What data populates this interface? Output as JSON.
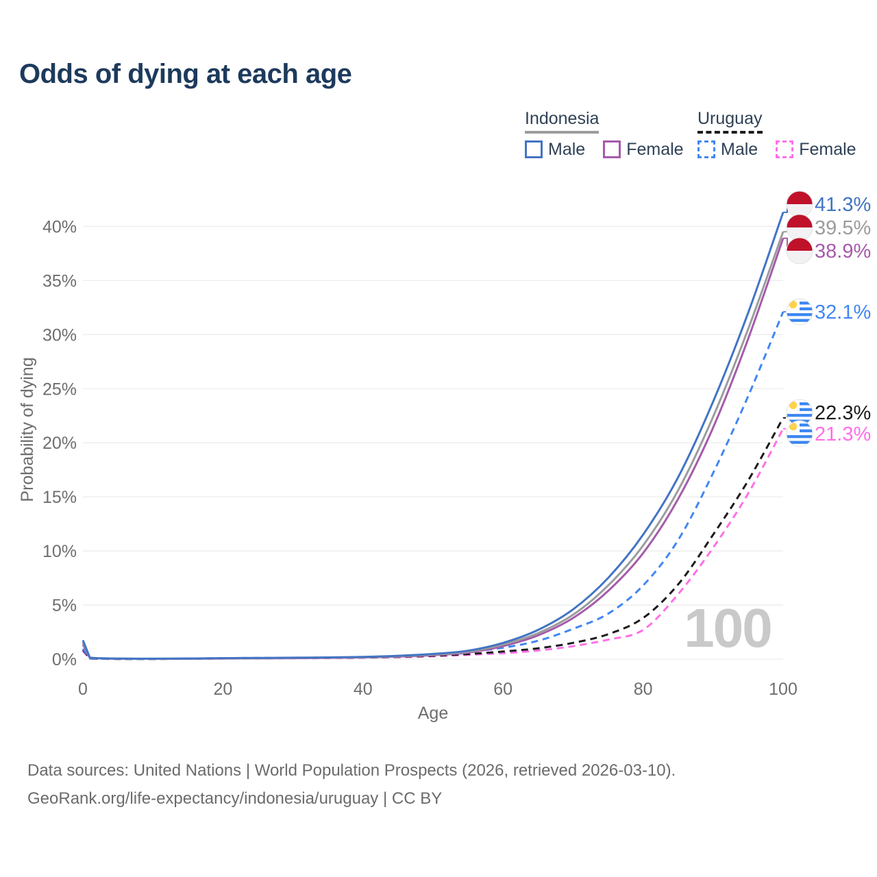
{
  "title": "Odds of dying at each age",
  "legend": {
    "groups": [
      {
        "label": "Indonesia",
        "line": {
          "color": "#9c9c9c",
          "style": "solid"
        },
        "items": [
          {
            "label": "Male",
            "color": "#4274c4",
            "style": "solid"
          },
          {
            "label": "Female",
            "color": "#a55bab",
            "style": "solid"
          }
        ]
      },
      {
        "label": "Uruguay",
        "line": {
          "color": "#1c1c1c",
          "style": "dashed"
        },
        "items": [
          {
            "label": "Male",
            "color": "#4187f2",
            "style": "dashed"
          },
          {
            "label": "Female",
            "color": "#ff6fe8",
            "style": "dashed"
          }
        ]
      }
    ]
  },
  "chart_data": {
    "type": "line",
    "title": "Odds of dying at each age",
    "xlabel": "Age",
    "ylabel": "Probability of dying",
    "xlim": [
      0,
      100
    ],
    "ylim": [
      0,
      43
    ],
    "x_ticks": [
      0,
      20,
      40,
      60,
      80,
      100
    ],
    "y_ticks": [
      0,
      5,
      10,
      15,
      20,
      25,
      30,
      35,
      40
    ],
    "y_tick_suffix": "%",
    "grid": "horizontal",
    "legend_position": "top-right",
    "watermark": "100",
    "x": [
      0,
      1,
      2,
      5,
      10,
      15,
      20,
      25,
      30,
      35,
      40,
      45,
      50,
      55,
      60,
      65,
      70,
      75,
      80,
      85,
      90,
      95,
      100
    ],
    "series": [
      {
        "name": "Indonesia Male",
        "country": "Indonesia",
        "sex": "male",
        "color": "#4274c4",
        "dash": false,
        "flag": "indonesia",
        "end_label": "41.3%",
        "values": [
          1.75,
          0.13,
          0.09,
          0.05,
          0.04,
          0.06,
          0.09,
          0.11,
          0.13,
          0.16,
          0.21,
          0.31,
          0.48,
          0.78,
          1.5,
          2.7,
          4.6,
          7.5,
          11.5,
          16.8,
          23.8,
          32.0,
          41.3
        ]
      },
      {
        "name": "Indonesia Both sexes",
        "country": "Indonesia",
        "sex": "both",
        "color": "#9c9c9c",
        "dash": false,
        "flag": "indonesia",
        "end_label": "39.5%",
        "values": [
          1.55,
          0.11,
          0.08,
          0.045,
          0.035,
          0.05,
          0.07,
          0.09,
          0.11,
          0.14,
          0.18,
          0.27,
          0.42,
          0.68,
          1.35,
          2.4,
          4.1,
          6.8,
          10.5,
          15.6,
          22.4,
          30.5,
          39.5
        ]
      },
      {
        "name": "Indonesia Female",
        "country": "Indonesia",
        "sex": "female",
        "color": "#a55bab",
        "dash": false,
        "flag": "indonesia",
        "end_label": "38.9%",
        "values": [
          1.35,
          0.1,
          0.07,
          0.04,
          0.03,
          0.04,
          0.055,
          0.07,
          0.09,
          0.12,
          0.16,
          0.23,
          0.37,
          0.6,
          1.2,
          2.2,
          3.8,
          6.3,
          9.8,
          14.8,
          21.4,
          29.6,
          38.9
        ]
      },
      {
        "name": "Uruguay Male",
        "country": "Uruguay",
        "sex": "male",
        "color": "#4187f2",
        "dash": true,
        "flag": "uruguay",
        "end_label": "32.1%",
        "values": [
          0.95,
          0.06,
          0.04,
          0.025,
          0.02,
          0.05,
          0.09,
          0.105,
          0.12,
          0.14,
          0.18,
          0.26,
          0.42,
          0.68,
          1.05,
          1.7,
          2.8,
          4.2,
          6.8,
          11.0,
          17.2,
          24.3,
          32.1
        ]
      },
      {
        "name": "Uruguay Both sexes",
        "country": "Uruguay",
        "sex": "both",
        "color": "#1c1c1c",
        "dash": true,
        "flag": "uruguay",
        "end_label": "22.3%",
        "values": [
          0.85,
          0.055,
          0.035,
          0.022,
          0.018,
          0.04,
          0.07,
          0.085,
          0.1,
          0.12,
          0.15,
          0.21,
          0.31,
          0.47,
          0.7,
          1.0,
          1.5,
          2.3,
          3.8,
          6.9,
          11.5,
          16.5,
          22.3
        ]
      },
      {
        "name": "Uruguay Female",
        "country": "Uruguay",
        "sex": "female",
        "color": "#ff6fe8",
        "dash": true,
        "flag": "uruguay",
        "end_label": "21.3%",
        "values": [
          0.75,
          0.05,
          0.03,
          0.02,
          0.015,
          0.03,
          0.05,
          0.065,
          0.08,
          0.1,
          0.13,
          0.18,
          0.26,
          0.4,
          0.55,
          0.8,
          1.2,
          1.8,
          2.7,
          6.0,
          10.3,
          15.3,
          21.3
        ]
      }
    ],
    "flag_colors": {
      "indonesia_red": "#c0112b",
      "uruguay_blue": "#3a86f0",
      "uruguay_sun_yellow": "#ffd24a"
    }
  },
  "footer": {
    "line1": "Data sources: United Nations | World Population Prospects (2026, retrieved 2026-03-10).",
    "line2": "GeoRank.org/life-expectancy/indonesia/uruguay | CC BY"
  }
}
